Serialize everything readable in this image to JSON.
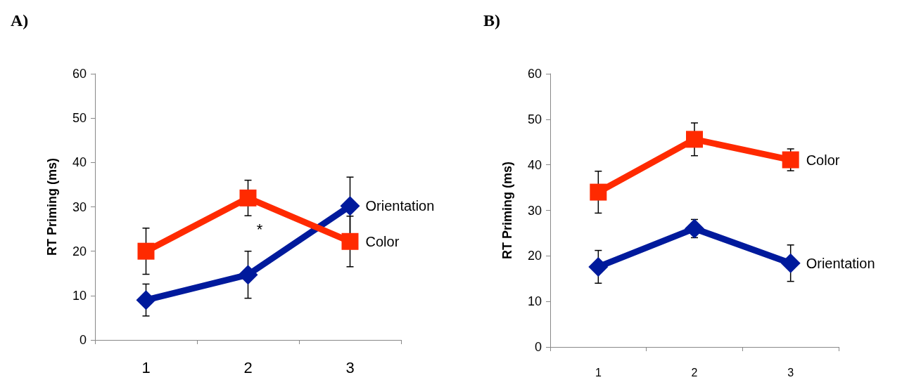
{
  "chart_data": [
    {
      "type": "line",
      "title": "A)",
      "ylabel": "RT Priming (ms)",
      "categories": [
        "1",
        "2",
        "3"
      ],
      "ylim": [
        0,
        60
      ],
      "yticks": [
        0,
        10,
        20,
        30,
        40,
        50,
        60
      ],
      "grid": false,
      "legend": false,
      "line_style": "solid",
      "annotations": [
        "*"
      ],
      "series": [
        {
          "name": "Orientation",
          "color": "#001a9c",
          "marker": "diamond",
          "values": [
            9,
            14.7,
            30.2
          ],
          "errors": [
            3.6,
            5.3,
            6.5
          ]
        },
        {
          "name": "Color",
          "color": "#ff2a00",
          "marker": "square",
          "values": [
            20,
            32,
            22.2
          ],
          "errors": [
            5.2,
            4,
            5.7
          ]
        }
      ]
    },
    {
      "type": "line",
      "title": "B)",
      "ylabel": "RT Priming (ms)",
      "categories": [
        "1",
        "2",
        "3"
      ],
      "ylim": [
        0,
        60
      ],
      "yticks": [
        0,
        10,
        20,
        30,
        40,
        50,
        60
      ],
      "grid": false,
      "legend": false,
      "line_style": "solid",
      "series": [
        {
          "name": "Color",
          "color": "#ff2a00",
          "marker": "square",
          "values": [
            34,
            45.6,
            41.1
          ],
          "errors": [
            4.6,
            3.6,
            2.4
          ]
        },
        {
          "name": "Orientation",
          "color": "#001a9c",
          "marker": "diamond",
          "values": [
            17.6,
            26,
            18.4
          ],
          "errors": [
            3.6,
            2,
            4
          ]
        }
      ]
    }
  ]
}
